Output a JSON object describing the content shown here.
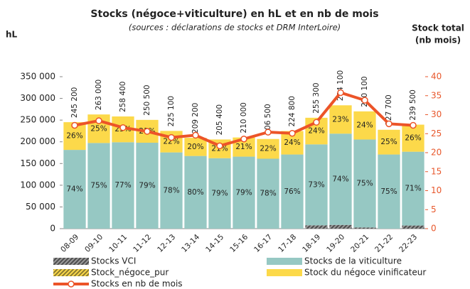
{
  "chart_data": {
    "type": "bar",
    "stacked": true,
    "title": "Stocks (négoce+viticulture) en hL et en nb de mois",
    "subtitle": "(sources : déclarations de stocks et DRM InterLoire)",
    "y_label": "hL",
    "y2_label": [
      "Stock total",
      "(nb mois)"
    ],
    "categories": [
      "08-09",
      "09-10",
      "10-11",
      "11-12",
      "12-13",
      "13-14",
      "14-15",
      "15-16",
      "16-17",
      "17-18",
      "18-19",
      "19-20",
      "20-21",
      "21-22",
      "22-23"
    ],
    "total_labels": [
      "245 200",
      "263 000",
      "258 400",
      "250 500",
      "225 100",
      "209 200",
      "205 400",
      "210 000",
      "206 500",
      "224 800",
      "255 300",
      "284 100",
      "270 100",
      "227 700",
      "239 500"
    ],
    "series": [
      {
        "name": "Stocks VCI",
        "color": "#4d4d4d",
        "pattern": "hatch",
        "values": [
          0,
          0,
          0,
          0,
          0,
          0,
          0,
          0,
          0,
          0,
          7700,
          8600,
          2700,
          0,
          7200
        ]
      },
      {
        "name": "Stock_négoce_pur",
        "color": "#e0b400",
        "pattern": "hatch",
        "values": [
          0,
          0,
          0,
          0,
          0,
          0,
          0,
          0,
          0,
          0,
          0,
          0,
          0,
          0,
          0
        ]
      },
      {
        "name": "Stocks de la viticulture",
        "color": "#96c8c3",
        "values": [
          181400,
          197300,
          199000,
          197900,
          175600,
          167400,
          162300,
          165900,
          161100,
          170800,
          186400,
          210200,
          202600,
          170800,
          170000
        ],
        "share_labels": [
          "74%",
          "75%",
          "77%",
          "79%",
          "78%",
          "80%",
          "79%",
          "79%",
          "78%",
          "76%",
          "73%",
          "74%",
          "75%",
          "75%",
          "71%"
        ]
      },
      {
        "name": "Stock du négoce vinificateur",
        "color": "#fcd94a",
        "values": [
          63800,
          65700,
          59400,
          52600,
          49500,
          41800,
          43100,
          44100,
          45400,
          54000,
          61300,
          65300,
          64800,
          56900,
          62300
        ],
        "share_labels": [
          "26%",
          "25%",
          "23%",
          "21%",
          "22%",
          "20%",
          "21%",
          "21%",
          "22%",
          "24%",
          "24%",
          "23%",
          "24%",
          "25%",
          "26%"
        ]
      },
      {
        "name": "Stocks en nb de mois",
        "type": "line",
        "axis": "y2",
        "color": "#ec5428",
        "values": [
          27.2,
          28.4,
          26.6,
          25.6,
          24.0,
          24.6,
          21.8,
          23.6,
          25.4,
          25.1,
          28.0,
          35.8,
          33.8,
          27.6,
          27.2
        ]
      }
    ],
    "ylim": [
      0,
      350000
    ],
    "yticks": [
      {
        "value": 0,
        "label": "0"
      },
      {
        "value": 50000,
        "label": "50 000"
      },
      {
        "value": 100000,
        "label": "100 000"
      },
      {
        "value": 150000,
        "label": "150 000"
      },
      {
        "value": 200000,
        "label": "200 000"
      },
      {
        "value": 250000,
        "label": "250 000"
      },
      {
        "value": 300000,
        "label": "300 000"
      },
      {
        "value": 350000,
        "label": "350 000"
      }
    ],
    "y2lim": [
      0,
      40
    ],
    "y2ticks": [
      0,
      5,
      10,
      15,
      20,
      25,
      30,
      35,
      40
    ],
    "y2_color": "#e8572b",
    "grid": false
  }
}
